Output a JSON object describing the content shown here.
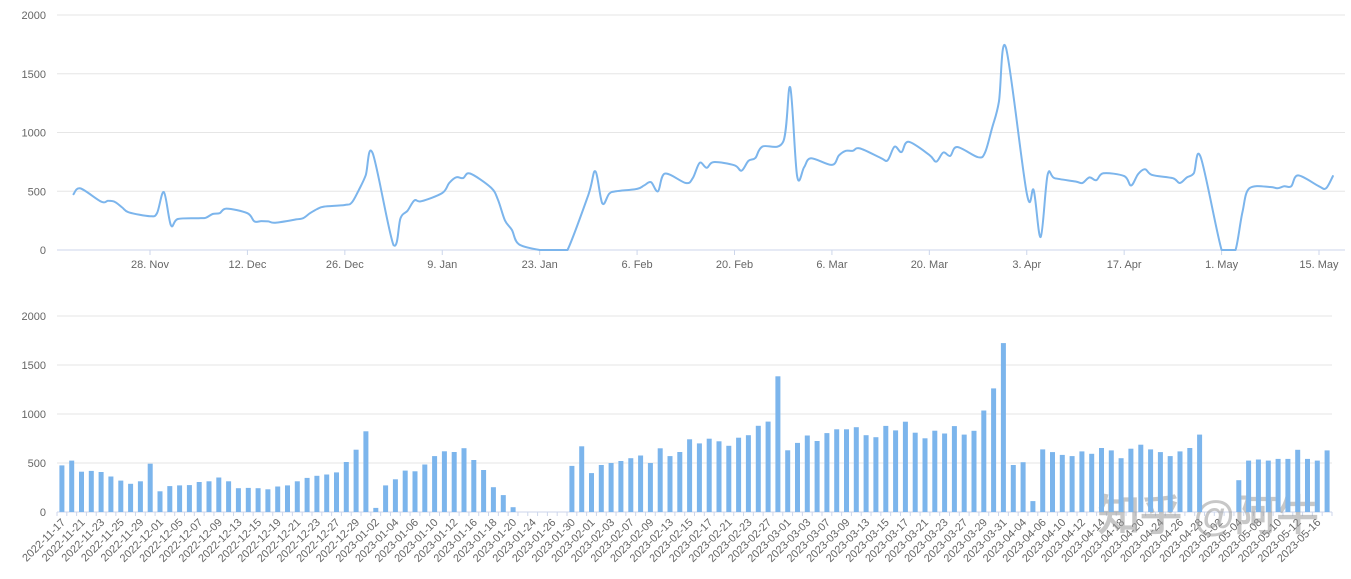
{
  "watermark": {
    "text": "知乎 @阿牛",
    "color": "#9a9a9a",
    "opacity": 0.55
  },
  "colors": {
    "series": "#7cb5ec",
    "grid": "#e6e6e6",
    "axis_line": "#ccd6eb",
    "tick": "#ccd6eb",
    "label": "#666666",
    "background": "#ffffff"
  },
  "chart_data": [
    {
      "type": "line",
      "title": "",
      "xlabel": "",
      "ylabel": "",
      "legend": "none",
      "grid": true,
      "smooth": true,
      "ylim": [
        0,
        2000
      ],
      "y_ticks": [
        0,
        500,
        1000,
        1500,
        2000
      ],
      "x_tick_labels": [
        "28. Nov",
        "12. Dec",
        "26. Dec",
        "9. Jan",
        "23. Jan",
        "6. Feb",
        "20. Feb",
        "6. Mar",
        "20. Mar",
        "3. Apr",
        "17. Apr",
        "1. May",
        "15. May"
      ],
      "x_tick_dates": [
        "2022-11-28",
        "2022-12-12",
        "2022-12-26",
        "2023-01-09",
        "2023-01-23",
        "2023-02-06",
        "2023-02-20",
        "2023-03-06",
        "2023-03-20",
        "2023-04-03",
        "2023-04-17",
        "2023-05-01",
        "2023-05-15"
      ],
      "x": [
        "2022-11-17",
        "2022-11-18",
        "2022-11-21",
        "2022-11-22",
        "2022-11-23",
        "2022-11-24",
        "2022-11-25",
        "2022-11-28",
        "2022-11-29",
        "2022-11-30",
        "2022-12-01",
        "2022-12-02",
        "2022-12-05",
        "2022-12-06",
        "2022-12-07",
        "2022-12-08",
        "2022-12-09",
        "2022-12-12",
        "2022-12-13",
        "2022-12-14",
        "2022-12-15",
        "2022-12-16",
        "2022-12-19",
        "2022-12-20",
        "2022-12-21",
        "2022-12-22",
        "2022-12-23",
        "2022-12-26",
        "2022-12-27",
        "2022-12-28",
        "2022-12-29",
        "2022-12-30",
        "2023-01-02",
        "2023-01-03",
        "2023-01-04",
        "2023-01-05",
        "2023-01-06",
        "2023-01-09",
        "2023-01-10",
        "2023-01-11",
        "2023-01-12",
        "2023-01-13",
        "2023-01-16",
        "2023-01-17",
        "2023-01-18",
        "2023-01-19",
        "2023-01-20",
        "2023-01-23",
        "2023-01-24",
        "2023-01-25",
        "2023-01-26",
        "2023-01-27",
        "2023-01-30",
        "2023-01-31",
        "2023-02-01",
        "2023-02-02",
        "2023-02-03",
        "2023-02-06",
        "2023-02-07",
        "2023-02-08",
        "2023-02-09",
        "2023-02-10",
        "2023-02-13",
        "2023-02-14",
        "2023-02-15",
        "2023-02-16",
        "2023-02-17",
        "2023-02-20",
        "2023-02-21",
        "2023-02-22",
        "2023-02-23",
        "2023-02-24",
        "2023-02-27",
        "2023-02-28",
        "2023-03-01",
        "2023-03-02",
        "2023-03-03",
        "2023-03-06",
        "2023-03-07",
        "2023-03-08",
        "2023-03-09",
        "2023-03-10",
        "2023-03-13",
        "2023-03-14",
        "2023-03-15",
        "2023-03-16",
        "2023-03-17",
        "2023-03-20",
        "2023-03-21",
        "2023-03-22",
        "2023-03-23",
        "2023-03-24",
        "2023-03-27",
        "2023-03-28",
        "2023-03-29",
        "2023-03-30",
        "2023-03-31",
        "2023-04-03",
        "2023-04-04",
        "2023-04-05",
        "2023-04-06",
        "2023-04-07",
        "2023-04-10",
        "2023-04-11",
        "2023-04-12",
        "2023-04-13",
        "2023-04-14",
        "2023-04-17",
        "2023-04-18",
        "2023-04-19",
        "2023-04-20",
        "2023-04-21",
        "2023-04-24",
        "2023-04-25",
        "2023-04-26",
        "2023-04-27",
        "2023-04-28",
        "2023-05-01",
        "2023-05-02",
        "2023-05-03",
        "2023-05-04",
        "2023-05-05",
        "2023-05-08",
        "2023-05-09",
        "2023-05-10",
        "2023-05-11",
        "2023-05-12",
        "2023-05-15",
        "2023-05-16",
        "2023-05-17"
      ],
      "values": [
        475,
        524,
        411,
        419,
        408,
        362,
        320,
        288,
        313,
        493,
        211,
        264,
        271,
        274,
        306,
        313,
        352,
        313,
        243,
        246,
        243,
        232,
        260,
        271,
        313,
        348,
        369,
        383,
        404,
        510,
        636,
        823,
        42,
        271,
        334,
        422,
        415,
        485,
        570,
        619,
        612,
        651,
        531,
        429,
        253,
        172,
        49,
        0,
        0,
        0,
        0,
        0,
        470,
        670,
        397,
        480,
        500,
        520,
        549,
        577,
        500,
        650,
        570,
        612,
        742,
        700,
        748,
        721,
        675,
        758,
        784,
        880,
        922,
        1385,
        630,
        705,
        781,
        724,
        805,
        844,
        844,
        865,
        784,
        763,
        879,
        833,
        921,
        809,
        752,
        830,
        801,
        877,
        790,
        829,
        1036,
        1261,
        1723,
        480,
        508,
        111,
        639,
        611,
        583,
        570,
        618,
        594,
        653,
        629,
        549,
        646,
        687,
        639,
        611,
        570,
        618,
        653,
        790,
        0,
        0,
        0,
        324,
        525,
        536,
        525,
        542,
        542,
        635,
        542,
        525,
        629
      ]
    },
    {
      "type": "bar",
      "title": "",
      "xlabel": "",
      "ylabel": "",
      "legend": "none",
      "grid": true,
      "ylim": [
        0,
        2000
      ],
      "y_ticks": [
        0,
        500,
        1000,
        1500,
        2000
      ],
      "label_step": 2,
      "x_tick_labels": [
        "2022-11-17",
        "2022-11-21",
        "2022-11-23",
        "2022-11-25",
        "2022-11-29",
        "2022-12-01",
        "2022-12-05",
        "2022-12-07",
        "2022-12-09",
        "2022-12-13",
        "2022-12-15",
        "2022-12-19",
        "2022-12-21",
        "2022-12-23",
        "2022-12-27",
        "2022-12-29",
        "2023-01-02",
        "2023-01-04",
        "2023-01-06",
        "2023-01-10",
        "2023-01-12",
        "2023-01-16",
        "2023-01-18",
        "2023-01-20",
        "2023-01-24",
        "2023-01-26",
        "2023-01-30",
        "2023-02-01",
        "2023-02-03",
        "2023-02-07",
        "2023-02-09",
        "2023-02-13",
        "2023-02-15",
        "2023-02-17",
        "2023-02-21",
        "2023-02-23",
        "2023-02-27",
        "2023-03-01",
        "2023-03-03",
        "2023-03-07",
        "2023-03-09",
        "2023-03-13",
        "2023-03-15",
        "2023-03-17",
        "2023-03-21",
        "2023-03-23",
        "2023-03-27",
        "2023-03-29",
        "2023-03-31",
        "2023-04-04",
        "2023-04-06",
        "2023-04-10",
        "2023-04-12",
        "2023-04-14",
        "2023-04-18",
        "2023-04-20",
        "2023-04-24",
        "2023-04-26",
        "2023-04-28",
        "2023-05-02",
        "2023-05-04",
        "2023-05-08",
        "2023-05-10",
        "2023-05-12",
        "2023-05-16"
      ],
      "categories": [
        "2022-11-17",
        "2022-11-18",
        "2022-11-21",
        "2022-11-22",
        "2022-11-23",
        "2022-11-24",
        "2022-11-25",
        "2022-11-28",
        "2022-11-29",
        "2022-11-30",
        "2022-12-01",
        "2022-12-02",
        "2022-12-05",
        "2022-12-06",
        "2022-12-07",
        "2022-12-08",
        "2022-12-09",
        "2022-12-12",
        "2022-12-13",
        "2022-12-14",
        "2022-12-15",
        "2022-12-16",
        "2022-12-19",
        "2022-12-20",
        "2022-12-21",
        "2022-12-22",
        "2022-12-23",
        "2022-12-26",
        "2022-12-27",
        "2022-12-28",
        "2022-12-29",
        "2022-12-30",
        "2023-01-02",
        "2023-01-03",
        "2023-01-04",
        "2023-01-05",
        "2023-01-06",
        "2023-01-09",
        "2023-01-10",
        "2023-01-11",
        "2023-01-12",
        "2023-01-13",
        "2023-01-16",
        "2023-01-17",
        "2023-01-18",
        "2023-01-19",
        "2023-01-20",
        "2023-01-23",
        "2023-01-24",
        "2023-01-25",
        "2023-01-26",
        "2023-01-27",
        "2023-01-30",
        "2023-01-31",
        "2023-02-01",
        "2023-02-02",
        "2023-02-03",
        "2023-02-06",
        "2023-02-07",
        "2023-02-08",
        "2023-02-09",
        "2023-02-10",
        "2023-02-13",
        "2023-02-14",
        "2023-02-15",
        "2023-02-16",
        "2023-02-17",
        "2023-02-20",
        "2023-02-21",
        "2023-02-22",
        "2023-02-23",
        "2023-02-24",
        "2023-02-27",
        "2023-02-28",
        "2023-03-01",
        "2023-03-02",
        "2023-03-03",
        "2023-03-06",
        "2023-03-07",
        "2023-03-08",
        "2023-03-09",
        "2023-03-10",
        "2023-03-13",
        "2023-03-14",
        "2023-03-15",
        "2023-03-16",
        "2023-03-17",
        "2023-03-20",
        "2023-03-21",
        "2023-03-22",
        "2023-03-23",
        "2023-03-24",
        "2023-03-27",
        "2023-03-28",
        "2023-03-29",
        "2023-03-30",
        "2023-03-31",
        "2023-04-03",
        "2023-04-04",
        "2023-04-05",
        "2023-04-06",
        "2023-04-07",
        "2023-04-10",
        "2023-04-11",
        "2023-04-12",
        "2023-04-13",
        "2023-04-14",
        "2023-04-17",
        "2023-04-18",
        "2023-04-19",
        "2023-04-20",
        "2023-04-21",
        "2023-04-24",
        "2023-04-25",
        "2023-04-26",
        "2023-04-27",
        "2023-04-28",
        "2023-05-01",
        "2023-05-02",
        "2023-05-03",
        "2023-05-04",
        "2023-05-05",
        "2023-05-08",
        "2023-05-09",
        "2023-05-10",
        "2023-05-11",
        "2023-05-12",
        "2023-05-15",
        "2023-05-16",
        "2023-05-17"
      ],
      "values": [
        475,
        524,
        411,
        419,
        408,
        362,
        320,
        288,
        313,
        493,
        211,
        264,
        271,
        274,
        306,
        313,
        352,
        313,
        243,
        246,
        243,
        232,
        260,
        271,
        313,
        348,
        369,
        383,
        404,
        510,
        636,
        823,
        42,
        271,
        334,
        422,
        415,
        485,
        570,
        619,
        612,
        651,
        531,
        429,
        253,
        172,
        49,
        0,
        0,
        0,
        0,
        0,
        470,
        670,
        397,
        480,
        500,
        520,
        549,
        577,
        500,
        650,
        570,
        612,
        742,
        700,
        748,
        721,
        675,
        758,
        784,
        880,
        922,
        1385,
        630,
        705,
        781,
        724,
        805,
        844,
        844,
        865,
        784,
        763,
        879,
        833,
        921,
        809,
        752,
        830,
        801,
        877,
        790,
        829,
        1036,
        1261,
        1723,
        480,
        508,
        111,
        639,
        611,
        583,
        570,
        618,
        594,
        653,
        629,
        549,
        646,
        687,
        639,
        611,
        570,
        618,
        653,
        790,
        0,
        0,
        0,
        324,
        525,
        536,
        525,
        542,
        542,
        635,
        542,
        525,
        629
      ]
    }
  ]
}
